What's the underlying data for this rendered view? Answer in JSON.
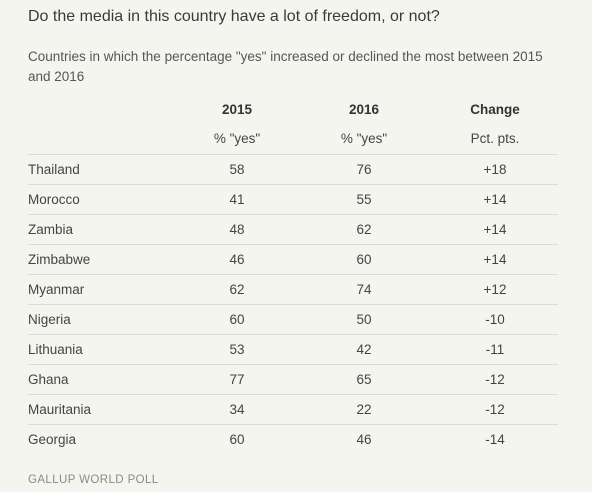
{
  "title": "Do the media in this country have a lot of freedom, or not?",
  "subtitle": "Countries in which the percentage \"yes\" increased or declined the most between 2015 and 2016",
  "columns": [
    {
      "header": "2015",
      "sub": "% \"yes\""
    },
    {
      "header": "2016",
      "sub": "% \"yes\""
    },
    {
      "header": "Change",
      "sub": "Pct. pts."
    }
  ],
  "rows": [
    {
      "country": "Thailand",
      "y2015": "58",
      "y2016": "76",
      "change": "+18"
    },
    {
      "country": "Morocco",
      "y2015": "41",
      "y2016": "55",
      "change": "+14"
    },
    {
      "country": "Zambia",
      "y2015": "48",
      "y2016": "62",
      "change": "+14"
    },
    {
      "country": "Zimbabwe",
      "y2015": "46",
      "y2016": "60",
      "change": "+14"
    },
    {
      "country": "Myanmar",
      "y2015": "62",
      "y2016": "74",
      "change": "+12"
    },
    {
      "country": "Nigeria",
      "y2015": "60",
      "y2016": "50",
      "change": "-10"
    },
    {
      "country": "Lithuania",
      "y2015": "53",
      "y2016": "42",
      "change": "-11"
    },
    {
      "country": "Ghana",
      "y2015": "77",
      "y2016": "65",
      "change": "-12"
    },
    {
      "country": "Mauritania",
      "y2015": "34",
      "y2016": "22",
      "change": "-12"
    },
    {
      "country": "Georgia",
      "y2015": "60",
      "y2016": "46",
      "change": "-14"
    }
  ],
  "source": "GALLUP WORLD POLL",
  "chart_data": {
    "type": "table",
    "title": "Do the media in this country have a lot of freedom, or not?",
    "subtitle": "Countries in which the percentage \"yes\" increased or declined the most between 2015 and 2016",
    "columns": [
      "2015 % \"yes\"",
      "2016 % \"yes\"",
      "Change Pct. pts."
    ],
    "categories": [
      "Thailand",
      "Morocco",
      "Zambia",
      "Zimbabwe",
      "Myanmar",
      "Nigeria",
      "Lithuania",
      "Ghana",
      "Mauritania",
      "Georgia"
    ],
    "series": [
      {
        "name": "2015",
        "values": [
          58,
          41,
          48,
          46,
          62,
          60,
          53,
          77,
          34,
          60
        ]
      },
      {
        "name": "2016",
        "values": [
          76,
          55,
          62,
          60,
          74,
          50,
          42,
          65,
          22,
          46
        ]
      },
      {
        "name": "Change",
        "values": [
          18,
          14,
          14,
          14,
          12,
          -10,
          -11,
          -12,
          -12,
          -14
        ]
      }
    ]
  }
}
